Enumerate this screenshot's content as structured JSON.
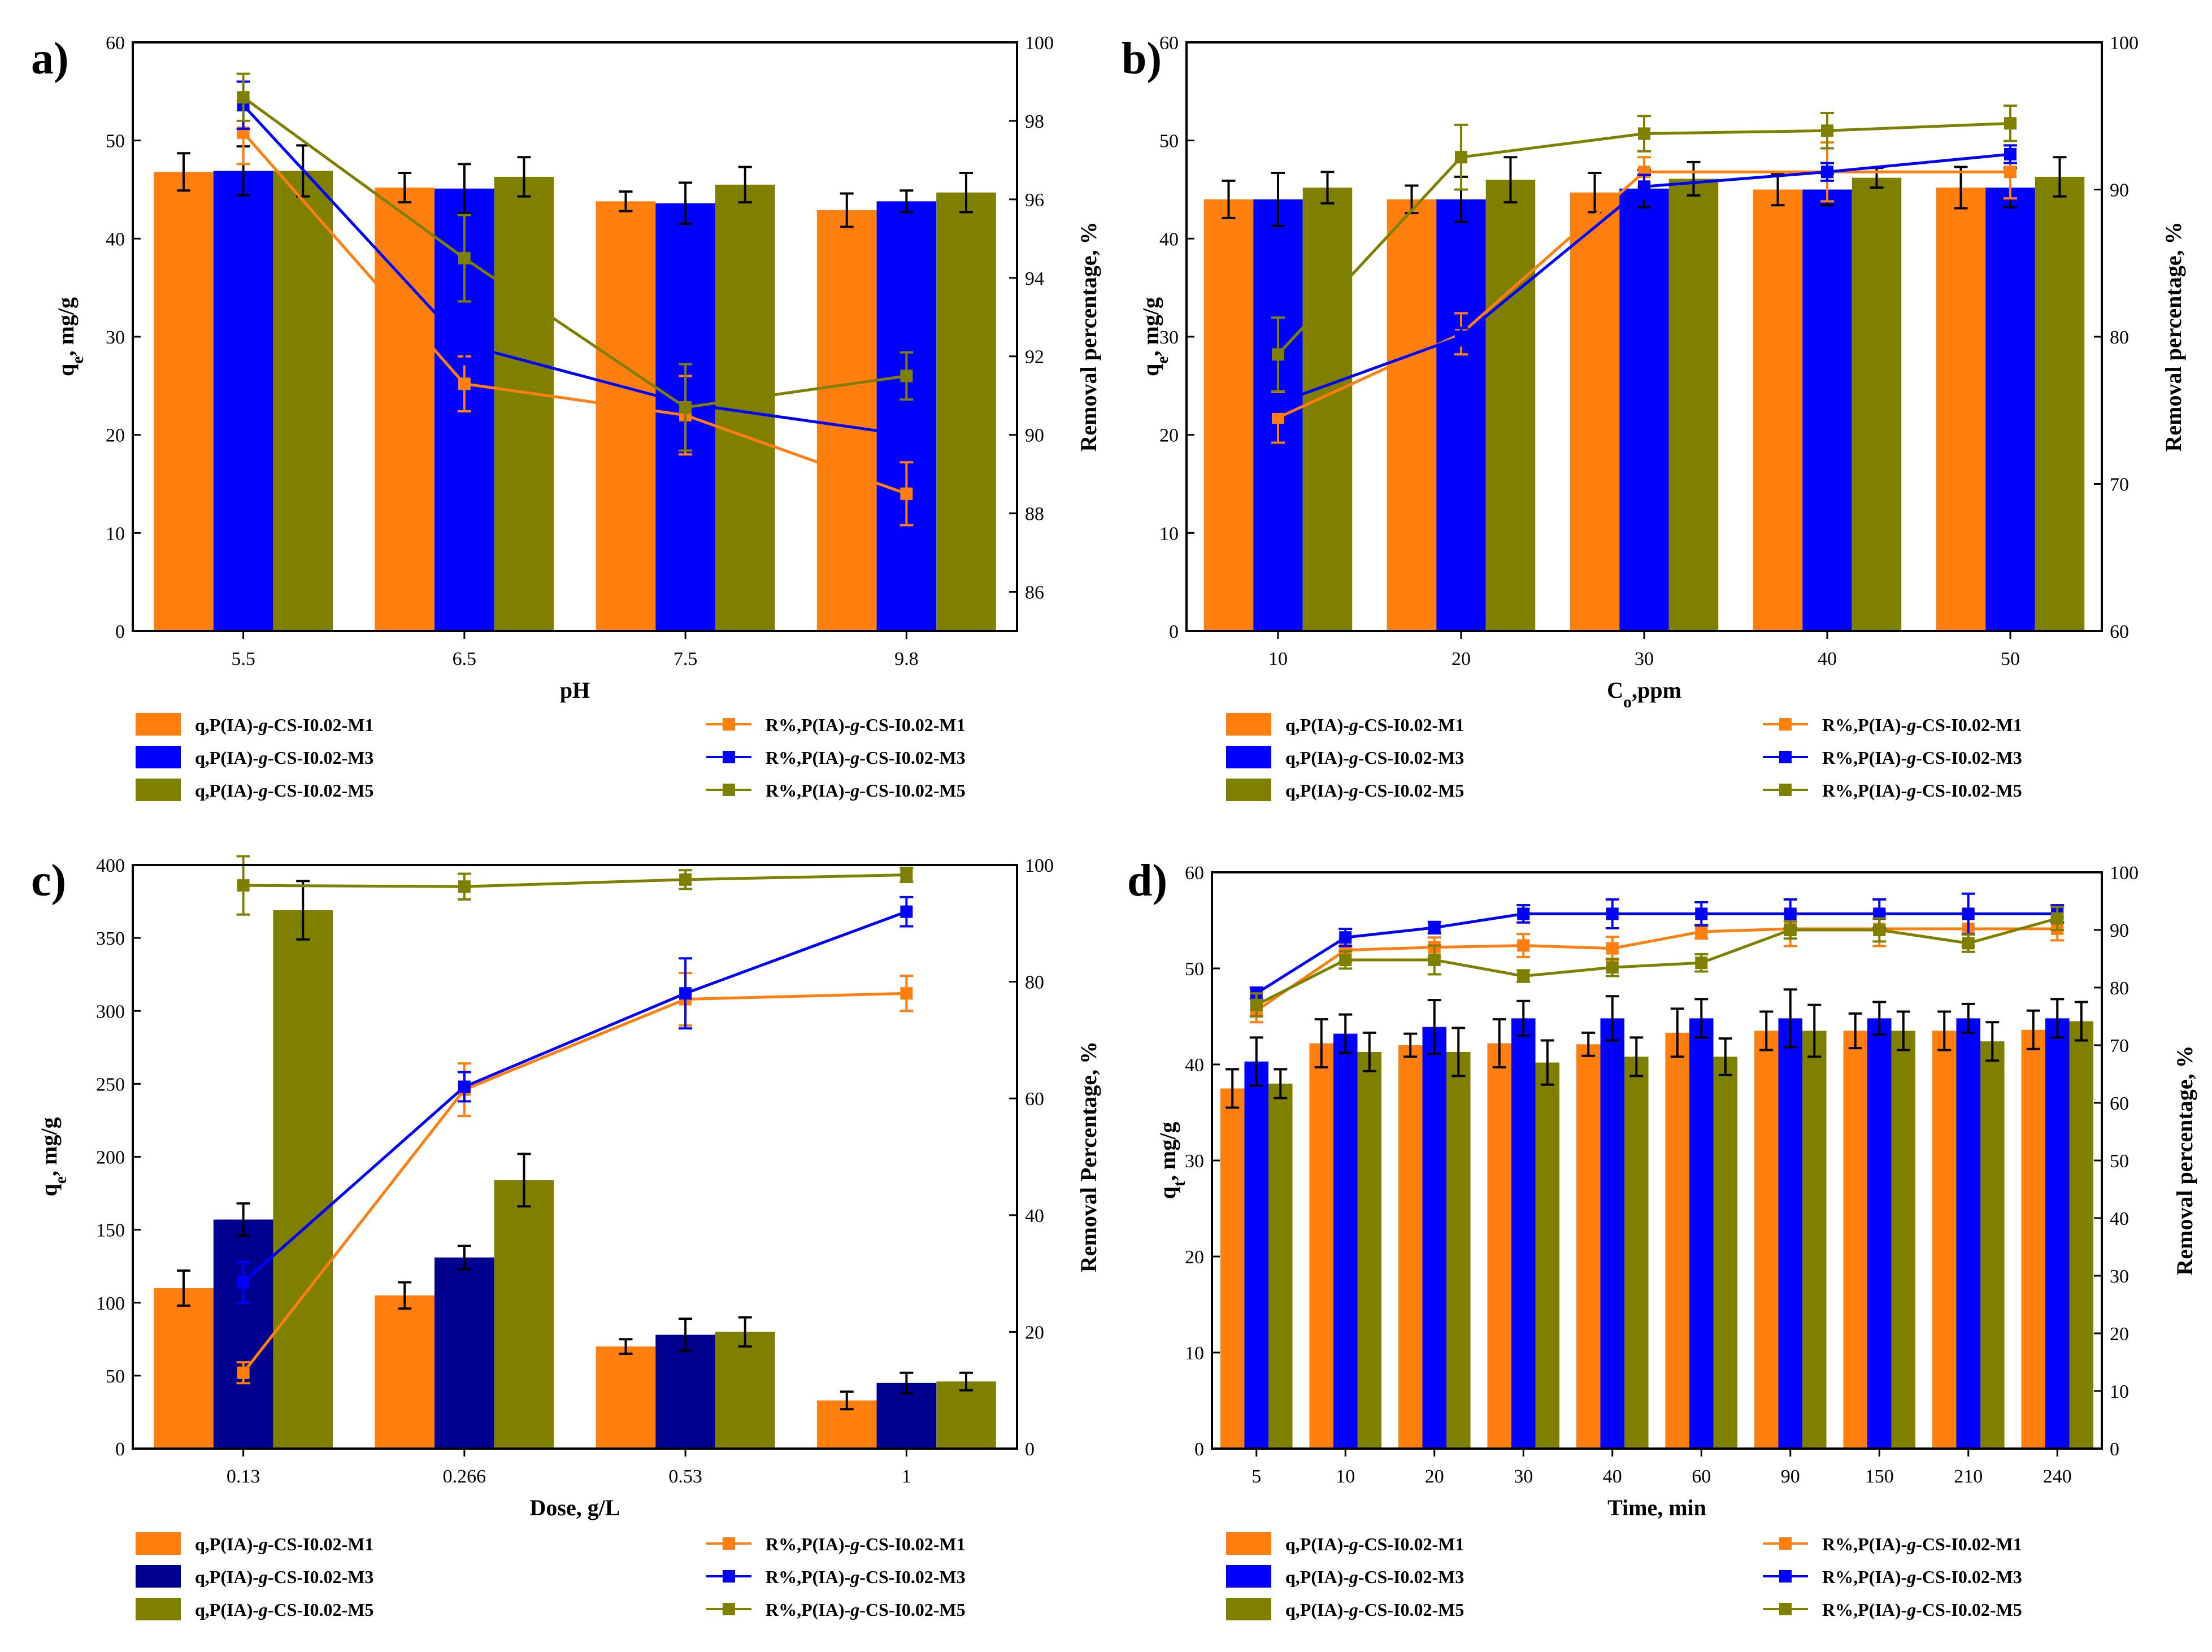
{
  "colors": {
    "M1": "#ff7f0e",
    "M3": "#0000ff",
    "M3_c": "#000090",
    "M5": "#7f7f00",
    "err": "#000000"
  },
  "legend": [
    {
      "label": "q,P(IA)-g-CS-I0.02-M1",
      "italic_part": "g",
      "kind": "bar",
      "series": "M1"
    },
    {
      "label": "q,P(IA)-g-CS-I0.02-M3",
      "italic_part": "g",
      "kind": "bar",
      "series": "M3"
    },
    {
      "label": "q,P(IA)-g-CS-I0.02-M5",
      "italic_part": "g",
      "kind": "bar",
      "series": "M5"
    },
    {
      "label": "R%,P(IA)-g-CS-I0.02-M1",
      "italic_part": "g",
      "kind": "line",
      "series": "M1"
    },
    {
      "label": "R%,P(IA)-g-CS-I0.02-M3",
      "italic_part": "g",
      "kind": "line",
      "series": "M3"
    },
    {
      "label": "R%,P(IA)-g-CS-I0.02-M5",
      "italic_part": "g",
      "kind": "line",
      "series": "M5"
    }
  ],
  "chart_data": [
    {
      "panel": "a)",
      "type": "bar",
      "xlabel": "pH",
      "ylabel": "qe, mg/g",
      "ylabel_sub": "e",
      "y2label": "Removal percentage, %",
      "categories": [
        "5.5",
        "6.5",
        "7.5",
        "9.8"
      ],
      "ylim": [
        0,
        60
      ],
      "yticks": [
        0,
        10,
        20,
        30,
        40,
        50,
        60
      ],
      "y2lim": [
        85,
        100
      ],
      "y2ticks": [
        86,
        88,
        90,
        92,
        94,
        96,
        98,
        100
      ],
      "bars": [
        {
          "name": "M1",
          "values": [
            46.8,
            45.2,
            43.8,
            42.9
          ],
          "err": [
            1.9,
            1.5,
            1.0,
            1.7
          ]
        },
        {
          "name": "M3",
          "values": [
            46.9,
            45.1,
            43.6,
            43.8
          ],
          "err": [
            2.5,
            2.5,
            2.1,
            1.1
          ]
        },
        {
          "name": "M5",
          "values": [
            46.9,
            46.3,
            45.5,
            44.7
          ],
          "err": [
            2.6,
            2.0,
            1.8,
            2.0
          ]
        }
      ],
      "lines": [
        {
          "name": "M1",
          "values": [
            97.7,
            91.3,
            90.5,
            88.5
          ],
          "err": [
            0.8,
            0.7,
            1.0,
            0.8
          ]
        },
        {
          "name": "M3",
          "values": [
            98.4,
            92.3,
            90.8,
            90.0
          ],
          "err": [
            0.6,
            0.5,
            0.6,
            0
          ]
        },
        {
          "name": "M5",
          "values": [
            98.6,
            94.5,
            90.7,
            91.5
          ],
          "err": [
            0.6,
            1.1,
            1.1,
            0.6
          ]
        }
      ]
    },
    {
      "panel": "b)",
      "type": "bar",
      "xlabel": "Co,ppm",
      "xlabel_sub": "o",
      "ylabel": "qe, mg/g",
      "ylabel_sub": "e",
      "y2label": "Removal percentage, %",
      "categories": [
        "10",
        "20",
        "30",
        "40",
        "50"
      ],
      "ylim": [
        0,
        60
      ],
      "yticks": [
        0,
        10,
        20,
        30,
        40,
        50,
        60
      ],
      "y2lim": [
        60,
        100
      ],
      "y2ticks": [
        60,
        70,
        80,
        90,
        100
      ],
      "bars": [
        {
          "name": "M1",
          "values": [
            44.0,
            44.0,
            44.7,
            45.0,
            45.2
          ],
          "err": [
            1.9,
            1.4,
            2.0,
            1.6,
            2.1
          ]
        },
        {
          "name": "M3",
          "values": [
            44.0,
            44.0,
            45.1,
            45.0,
            45.2
          ],
          "err": [
            2.7,
            2.3,
            1.9,
            1.6,
            2.0
          ]
        },
        {
          "name": "M5",
          "values": [
            45.2,
            46.0,
            46.1,
            46.2,
            46.3
          ],
          "err": [
            1.6,
            2.3,
            1.7,
            1.0,
            2.0
          ]
        }
      ],
      "lines": [
        {
          "name": "M1",
          "values": [
            74.5,
            80.2,
            91.2,
            91.2,
            91.2
          ],
          "err": [
            1.7,
            1.4,
            1.0,
            2.0,
            1.8
          ]
        },
        {
          "name": "M3",
          "values": [
            75.5,
            80.0,
            90.2,
            91.2,
            92.4
          ],
          "err": [
            0.6,
            0.6,
            0.8,
            0.6,
            0.6
          ]
        },
        {
          "name": "M5",
          "values": [
            78.8,
            92.2,
            93.8,
            94.0,
            94.5
          ],
          "err": [
            2.5,
            2.2,
            1.2,
            1.2,
            1.2
          ]
        }
      ]
    },
    {
      "panel": "c)",
      "type": "bar",
      "xlabel": "Dose, g/L",
      "ylabel": "qe, mg/g",
      "ylabel_sub": "e",
      "y2label": "Removal Percentage, %",
      "categories": [
        "0.13",
        "0.266",
        "0.53",
        "1"
      ],
      "ylim": [
        0,
        400
      ],
      "yticks": [
        0,
        50,
        100,
        150,
        200,
        250,
        300,
        350,
        400
      ],
      "y2lim": [
        0,
        100
      ],
      "y2ticks": [
        0,
        20,
        40,
        60,
        80,
        100
      ],
      "bars": [
        {
          "name": "M1",
          "values": [
            110,
            105,
            70,
            33
          ],
          "err": [
            12,
            9,
            5,
            6
          ]
        },
        {
          "name": "M3",
          "values": [
            157,
            131,
            78,
            45
          ],
          "err": [
            11,
            8,
            11,
            7
          ]
        },
        {
          "name": "M5",
          "values": [
            369,
            184,
            80,
            46
          ],
          "err": [
            20,
            18,
            10,
            6
          ]
        }
      ],
      "lines": [
        {
          "name": "M1",
          "values": [
            13.0,
            61.5,
            77.0,
            78.0
          ],
          "err": [
            1.8,
            4.5,
            4.5,
            3.0
          ]
        },
        {
          "name": "M3",
          "values": [
            28.5,
            62.0,
            78.0,
            92.0
          ],
          "err": [
            3.5,
            2.5,
            6.0,
            2.5
          ]
        },
        {
          "name": "M5",
          "values": [
            96.5,
            96.3,
            97.5,
            98.3
          ],
          "err": [
            5.0,
            2.2,
            1.6,
            1.2
          ]
        }
      ]
    },
    {
      "panel": "d)",
      "type": "bar",
      "xlabel": "Time, min",
      "ylabel": "qt, mg/g",
      "ylabel_sub": "t",
      "y2label": "Removal percentage, %",
      "categories": [
        "5",
        "10",
        "20",
        "30",
        "40",
        "60",
        "90",
        "150",
        "210",
        "240"
      ],
      "ylim": [
        0,
        60
      ],
      "yticks": [
        0,
        10,
        20,
        30,
        40,
        50,
        60
      ],
      "y2lim": [
        0,
        100
      ],
      "y2ticks": [
        0,
        10,
        20,
        30,
        40,
        50,
        60,
        70,
        80,
        90,
        100
      ],
      "bars": [
        {
          "name": "M1",
          "values": [
            37.5,
            42.2,
            42.0,
            42.2,
            42.1,
            43.3,
            43.5,
            43.5,
            43.5,
            43.6
          ],
          "err": [
            2.0,
            2.5,
            1.2,
            2.5,
            1.2,
            2.5,
            2.0,
            1.8,
            2.0,
            2.0
          ]
        },
        {
          "name": "M3",
          "values": [
            40.3,
            43.2,
            43.9,
            44.8,
            44.8,
            44.8,
            44.8,
            44.8,
            44.8,
            44.8
          ],
          "err": [
            2.5,
            2.0,
            2.8,
            1.8,
            2.3,
            2.0,
            3.0,
            1.7,
            1.5,
            2.0
          ]
        },
        {
          "name": "M5",
          "values": [
            38.0,
            41.3,
            41.3,
            40.2,
            40.8,
            40.8,
            43.5,
            43.5,
            42.4,
            44.5
          ],
          "err": [
            1.5,
            2.0,
            2.5,
            2.3,
            2.0,
            1.9,
            2.7,
            2.0,
            2.0,
            2.0
          ]
        }
      ],
      "lines": [
        {
          "name": "M1",
          "values": [
            76.0,
            86.5,
            87.0,
            87.3,
            86.8,
            89.7,
            90.2,
            90.2,
            90.2,
            90.2
          ],
          "err": [
            2.0,
            2.0,
            1.7,
            2.0,
            2.0,
            1.2,
            3.0,
            3.0,
            3.0,
            2.0
          ]
        },
        {
          "name": "M3",
          "values": [
            79.0,
            88.7,
            90.4,
            92.8,
            92.8,
            92.8,
            92.8,
            92.8,
            92.8,
            92.8
          ],
          "err": [
            1.0,
            1.5,
            1.0,
            1.5,
            2.5,
            2.0,
            2.5,
            2.5,
            3.5,
            1.5
          ]
        },
        {
          "name": "M5",
          "values": [
            77.0,
            84.8,
            84.8,
            82.0,
            83.5,
            84.3,
            90.0,
            90.0,
            87.7,
            92.0
          ],
          "err": [
            2.0,
            1.5,
            2.5,
            1.0,
            1.5,
            1.5,
            1.5,
            2.0,
            1.5,
            2.0
          ]
        }
      ]
    }
  ]
}
